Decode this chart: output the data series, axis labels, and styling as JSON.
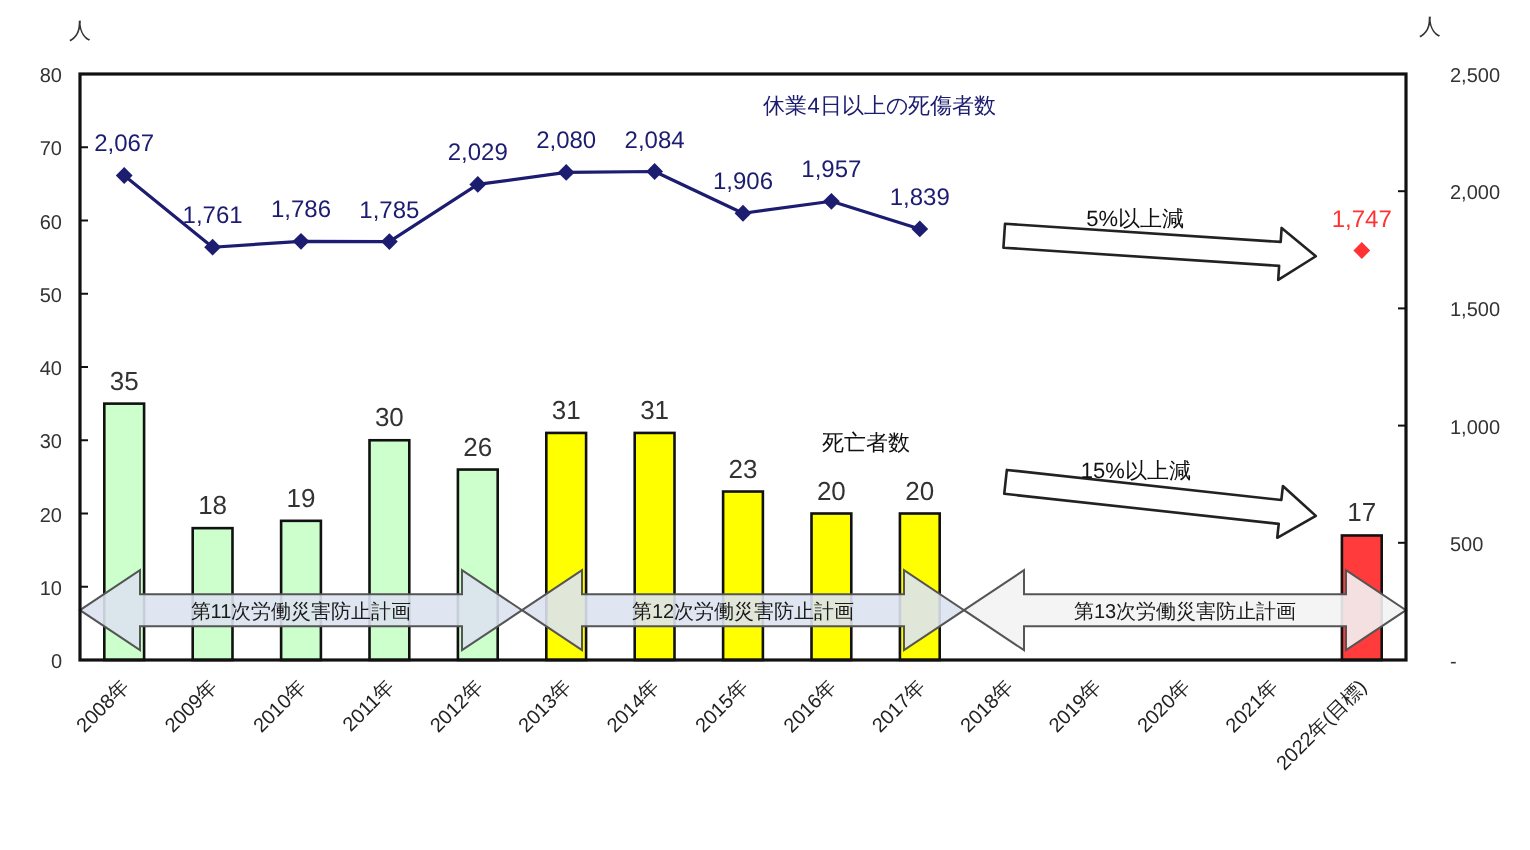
{
  "chart_data": {
    "type": "bar",
    "categories": [
      "2008年",
      "2009年",
      "2010年",
      "2011年",
      "2012年",
      "2013年",
      "2014年",
      "2015年",
      "2016年",
      "2017年",
      "2018年",
      "2019年",
      "2020年",
      "2021年",
      "2022年(目標)"
    ],
    "ylabel": "人",
    "y2label": "人",
    "ylim": [
      0,
      80
    ],
    "yticks": [
      0,
      10,
      20,
      30,
      40,
      50,
      60,
      70,
      80
    ],
    "y2lim": [
      0,
      2500
    ],
    "y2ticks": [
      {
        "value": 0,
        "label": "-"
      },
      {
        "value": 500,
        "label": "500"
      },
      {
        "value": 1000,
        "label": "1,000"
      },
      {
        "value": 1500,
        "label": "1,500"
      },
      {
        "value": 2000,
        "label": "2,000"
      },
      {
        "value": 2500,
        "label": "2,500"
      }
    ],
    "marker": "diamond",
    "series": [
      {
        "name": "死亡者数",
        "colors": [
          "#ccffcc",
          "#ccffcc",
          "#ccffcc",
          "#ccffcc",
          "#ccffcc",
          "#ffff00",
          "#ffff00",
          "#ffff00",
          "#ffff00",
          "#ffff00",
          null,
          null,
          null,
          null,
          "#ff3b3b"
        ],
        "values": [
          35,
          18,
          19,
          30,
          26,
          31,
          31,
          23,
          20,
          20,
          null,
          null,
          null,
          null,
          17
        ],
        "value_labels": [
          "35",
          "18",
          "19",
          "30",
          "26",
          "31",
          "31",
          "23",
          "20",
          "20",
          null,
          null,
          null,
          null,
          "17"
        ]
      },
      {
        "name": "休業4日以上の死傷者数",
        "type": "line",
        "axis": "y2",
        "color": "#1c1c70",
        "values": [
          2067,
          1761,
          1786,
          1785,
          2029,
          2080,
          2084,
          1906,
          1957,
          1839,
          null,
          null,
          null,
          null,
          null
        ],
        "value_labels": [
          "2,067",
          "1,761",
          "1,786",
          "1,785",
          "2,029",
          "2,080",
          "2,084",
          "1,906",
          "1,957",
          "1,839",
          null,
          null,
          null,
          null,
          null
        ]
      },
      {
        "type": "scatter",
        "axis": "y2",
        "color": "#ff3333",
        "values": [
          null,
          null,
          null,
          null,
          null,
          null,
          null,
          null,
          null,
          null,
          null,
          null,
          null,
          null,
          1747
        ],
        "value_labels": [
          null,
          null,
          null,
          null,
          null,
          null,
          null,
          null,
          null,
          null,
          null,
          null,
          null,
          null,
          "1,747"
        ]
      }
    ],
    "annotations": [
      "第11次労働災害防止計画",
      "第12次労働災害防止計画",
      "第13次労働災害防止計画",
      "5%以上減",
      "15%以上減"
    ]
  }
}
